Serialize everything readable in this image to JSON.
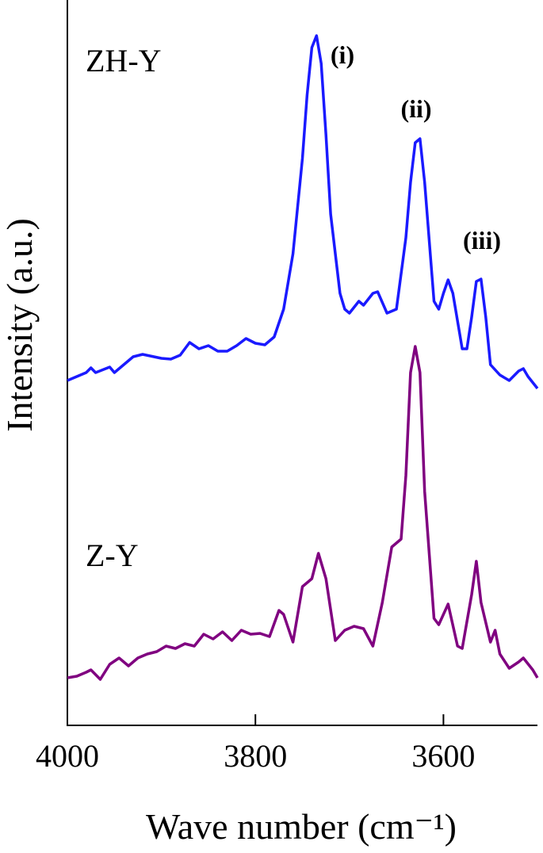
{
  "chart_data": {
    "type": "line",
    "y_label": "Intensity (a.u.)",
    "x_label": "Wave number (cm⁻¹)",
    "xlim": [
      4000,
      3500
    ],
    "xticks": [
      4000,
      3800,
      3600
    ],
    "ylim": [
      0,
      915
    ],
    "annotations": [
      "ZH-Y",
      "Z-Y",
      "(i)",
      "(ii)",
      "(iii)"
    ],
    "series": [
      {
        "color": "#1a1aff",
        "x": [
          4000,
          3980,
          3975,
          3970,
          3955,
          3950,
          3930,
          3920,
          3900,
          3890,
          3880,
          3870,
          3860,
          3850,
          3840,
          3830,
          3820,
          3810,
          3800,
          3790,
          3780,
          3770,
          3760,
          3750,
          3745,
          3740,
          3735,
          3730,
          3725,
          3720,
          3710,
          3705,
          3700,
          3690,
          3685,
          3675,
          3670,
          3660,
          3650,
          3640,
          3635,
          3630,
          3625,
          3620,
          3610,
          3605,
          3600,
          3595,
          3590,
          3580,
          3575,
          3570,
          3565,
          3560,
          3555,
          3550,
          3540,
          3530,
          3520,
          3515,
          3510,
          3500
        ],
        "values": [
          435,
          445,
          451,
          445,
          452,
          445,
          465,
          468,
          463,
          462,
          467,
          483,
          475,
          479,
          472,
          472,
          479,
          488,
          482,
          480,
          490,
          525,
          595,
          715,
          795,
          855,
          870,
          835,
          745,
          645,
          545,
          525,
          520,
          535,
          530,
          545,
          547,
          520,
          525,
          615,
          685,
          735,
          740,
          685,
          535,
          525,
          545,
          562,
          545,
          475,
          475,
          515,
          560,
          563,
          515,
          455,
          442,
          435,
          447,
          450,
          440,
          425
        ]
      },
      {
        "color": "#800080",
        "x": [
          4000,
          3990,
          3980,
          3975,
          3965,
          3955,
          3945,
          3935,
          3925,
          3915,
          3905,
          3895,
          3885,
          3875,
          3865,
          3855,
          3845,
          3835,
          3825,
          3815,
          3805,
          3795,
          3785,
          3775,
          3770,
          3760,
          3750,
          3740,
          3733,
          3725,
          3715,
          3705,
          3695,
          3685,
          3675,
          3665,
          3655,
          3645,
          3640,
          3635,
          3630,
          3625,
          3620,
          3610,
          3605,
          3595,
          3585,
          3580,
          3570,
          3565,
          3560,
          3550,
          3545,
          3540,
          3530,
          3520,
          3515,
          3505,
          3500
        ],
        "values": [
          60,
          62,
          67,
          70,
          58,
          77,
          85,
          75,
          85,
          90,
          93,
          100,
          97,
          103,
          100,
          115,
          109,
          118,
          107,
          120,
          115,
          116,
          112,
          145,
          140,
          105,
          175,
          185,
          217,
          185,
          107,
          120,
          125,
          122,
          100,
          155,
          225,
          235,
          315,
          445,
          478,
          445,
          295,
          135,
          127,
          153,
          100,
          97,
          165,
          207,
          155,
          105,
          120,
          90,
          72,
          80,
          85,
          70,
          60
        ]
      }
    ]
  }
}
